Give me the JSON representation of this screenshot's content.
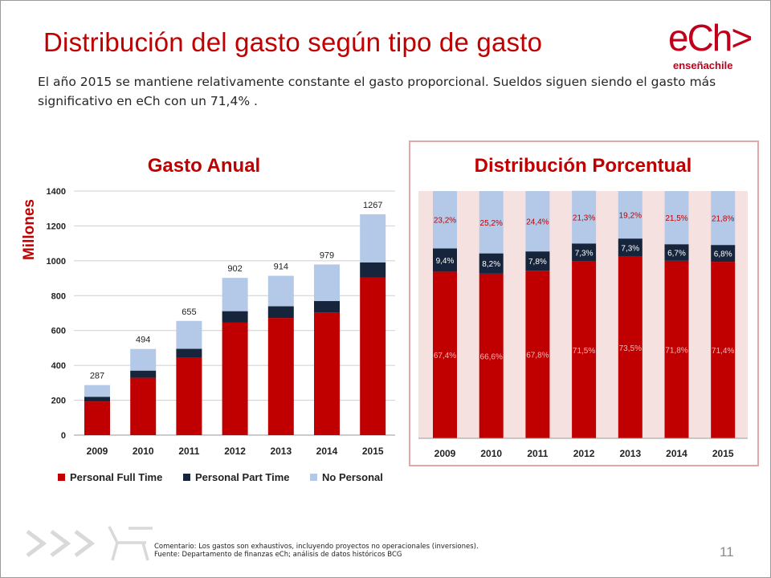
{
  "slide": {
    "title": "Distribución del gasto según tipo de gasto",
    "subtitle": "El año 2015 se mantiene relativamente constante el gasto proporcional. Sueldos siguen siendo el gasto más significativo en eCh con un 71,4% .",
    "logo_main": "eCh>",
    "logo_sub": "enseñachile",
    "footer_line1": "Comentario: Los gastos son exhaustivos, incluyendo proyectos no operacionales (inversiones).",
    "footer_line2": "Fuente: Departamento de finanzas eCh; análisis de datos históricos BCG",
    "page_number": "11",
    "decor_icon": "chevrons-chair-icon"
  },
  "colors": {
    "full_time": "#c00000",
    "part_time": "#17253c",
    "no_personal": "#b4c9e8",
    "title": "#c00000",
    "panel_bg": "#f6e1e1"
  },
  "chart_data": [
    {
      "type": "bar",
      "stacked": true,
      "title": "Gasto Anual",
      "ylabel": "Millones",
      "xlabel": "",
      "ylim": [
        0,
        1400
      ],
      "yticks": [
        0,
        200,
        400,
        600,
        800,
        1000,
        1200,
        1400
      ],
      "grid": true,
      "legend_position": "bottom",
      "categories": [
        "2009",
        "2010",
        "2011",
        "2012",
        "2013",
        "2014",
        "2015"
      ],
      "series": [
        {
          "name": "Personal Full Time",
          "values": [
            193,
            329,
            444,
            645,
            672,
            703,
            905
          ]
        },
        {
          "name": "Personal Part Time",
          "values": [
            27,
            41,
            51,
            66,
            67,
            66,
            86
          ]
        },
        {
          "name": "No Personal",
          "values": [
            67,
            124,
            160,
            191,
            175,
            210,
            276
          ]
        }
      ],
      "totals": [
        "287",
        "494",
        "655",
        "902",
        "914",
        "979",
        "1267"
      ]
    },
    {
      "type": "bar",
      "stacked": true,
      "percent": true,
      "title": "Distribución Porcentual",
      "ylim": [
        0,
        100
      ],
      "categories": [
        "2009",
        "2010",
        "2011",
        "2012",
        "2013",
        "2014",
        "2015"
      ],
      "series": [
        {
          "name": "Personal Full Time",
          "values": [
            67.4,
            66.6,
            67.8,
            71.5,
            73.5,
            71.8,
            71.4
          ],
          "labels": [
            "67,4%",
            "66,6%",
            "67,8%",
            "71,5%",
            "73,5%",
            "71,8%",
            "71,4%"
          ]
        },
        {
          "name": "Personal Part Time",
          "values": [
            9.4,
            8.2,
            7.8,
            7.3,
            7.3,
            6.7,
            6.8
          ],
          "labels": [
            "9,4%",
            "8,2%",
            "7,8%",
            "7,3%",
            "7,3%",
            "6,7%",
            "6,8%"
          ]
        },
        {
          "name": "No Personal",
          "values": [
            23.2,
            25.2,
            24.4,
            21.3,
            19.2,
            21.5,
            21.8
          ],
          "labels": [
            "23,2%",
            "25,2%",
            "24,4%",
            "21,3%",
            "19,2%",
            "21,5%",
            "21,8%"
          ]
        }
      ]
    }
  ]
}
